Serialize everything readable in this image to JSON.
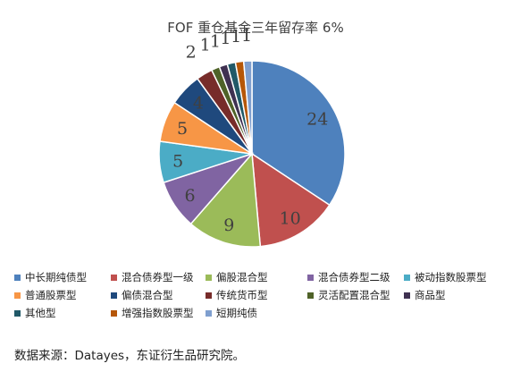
{
  "chart_data": {
    "type": "pie",
    "title": "FOF 重仓基金三年留存率 6%",
    "categories": [
      "中长期纯债型",
      "混合债券型一级",
      "偏股混合型",
      "混合债券型二级",
      "被动指数股票型",
      "普通股票型",
      "偏债混合型",
      "传统货币型",
      "灵活配置混合型",
      "商品型",
      "其他型",
      "增强指数股票型",
      "短期纯债"
    ],
    "values": [
      24,
      10,
      9,
      6,
      5,
      5,
      4,
      2,
      1,
      1,
      1,
      1,
      1
    ],
    "colors": [
      "#4e81bd",
      "#c0504e",
      "#9bbb59",
      "#8064a2",
      "#4bacc6",
      "#f79646",
      "#1f497d",
      "#772c2a",
      "#4f6228",
      "#3f3151",
      "#215968",
      "#b65708",
      "#7f9fcf"
    ],
    "legend_position": "bottom"
  },
  "source_note": "数据来源：Datayes，东证衍生品研究院。"
}
